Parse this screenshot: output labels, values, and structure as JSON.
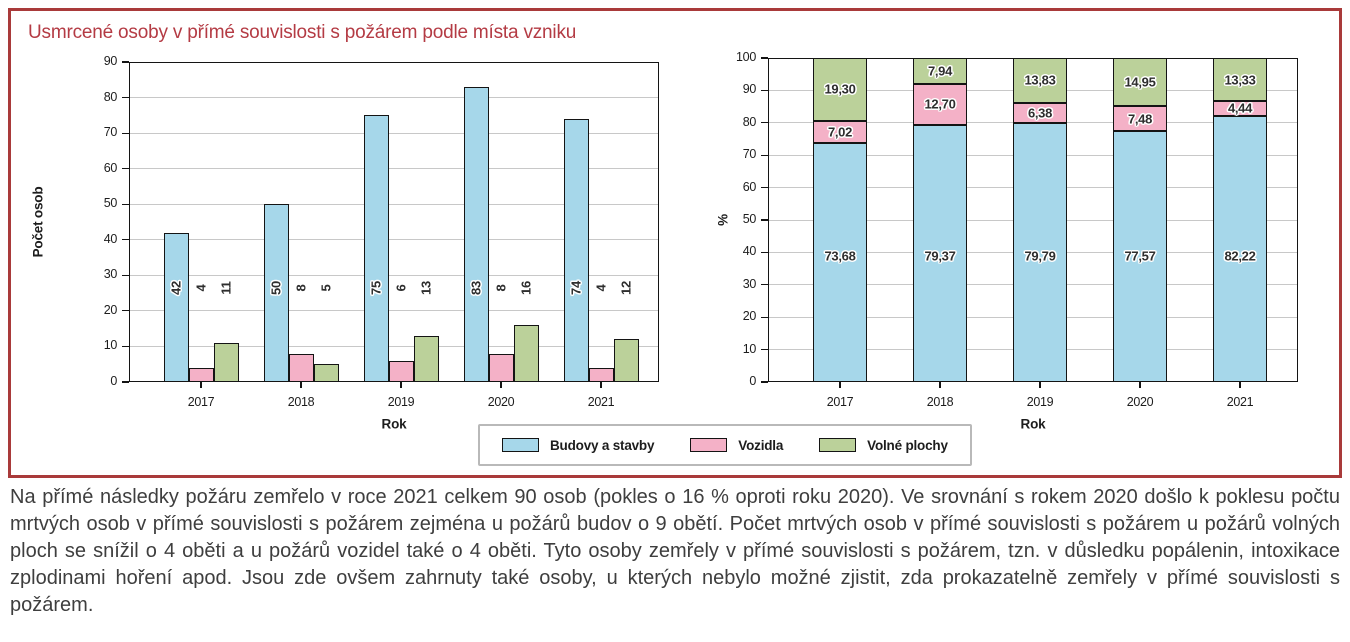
{
  "figure": {
    "title": "Usmrcené osoby v přímé souvislosti s požárem podle místa vzniku"
  },
  "colors": {
    "box_border": "#A93A3A",
    "title_red": "#B43B44",
    "buildings": "#A6D7EA",
    "vehicles": "#F4B1C7",
    "open_areas": "#BBD19A",
    "axis": "#141414",
    "grid": "#c8c8c8",
    "body_text": "#3E3E3E"
  },
  "legend": {
    "items": [
      {
        "key": "buildings",
        "label": "Budovy a stavby"
      },
      {
        "key": "vehicles",
        "label": "Vozidla"
      },
      {
        "key": "open_areas",
        "label": "Volné plochy"
      }
    ]
  },
  "chart_data": [
    {
      "type": "bar",
      "variant": "grouped",
      "title": "Usmrcené osoby v přímé souvislosti s požárem podle místa vzniku",
      "xlabel": "Rok",
      "ylabel": "Počet osob",
      "ylim": [
        0,
        90
      ],
      "ytick_step": 10,
      "grid": true,
      "legend_position": "bottom-center-shared",
      "categories": [
        "2017",
        "2018",
        "2019",
        "2020",
        "2021"
      ],
      "series": [
        {
          "name": "Budovy a stavby",
          "key": "buildings",
          "values": [
            42,
            50,
            75,
            83,
            74
          ],
          "labels": [
            "42",
            "50",
            "75",
            "83",
            "74"
          ]
        },
        {
          "name": "Vozidla",
          "key": "vehicles",
          "values": [
            4,
            8,
            6,
            8,
            4
          ],
          "labels": [
            "4",
            "8",
            "6",
            "8",
            "4"
          ]
        },
        {
          "name": "Volné plochy",
          "key": "open_areas",
          "values": [
            11,
            5,
            13,
            16,
            12
          ],
          "labels": [
            "11",
            "5",
            "13",
            "16",
            "12"
          ]
        }
      ]
    },
    {
      "type": "bar",
      "variant": "stacked-percent",
      "title": "",
      "xlabel": "Rok",
      "ylabel": "%",
      "ylim": [
        0,
        100
      ],
      "ytick_step": 10,
      "grid": true,
      "legend_position": "bottom-center-shared",
      "categories": [
        "2017",
        "2018",
        "2019",
        "2020",
        "2021"
      ],
      "series": [
        {
          "name": "Budovy a stavby",
          "key": "buildings",
          "values": [
            73.68,
            79.37,
            79.79,
            77.57,
            82.22
          ],
          "labels": [
            "73,68",
            "79,37",
            "79,79",
            "77,57",
            "82,22"
          ]
        },
        {
          "name": "Vozidla",
          "key": "vehicles",
          "values": [
            7.02,
            12.7,
            6.38,
            7.48,
            4.44
          ],
          "labels": [
            "7,02",
            "12,70",
            "6,38",
            "7,48",
            "4,44"
          ]
        },
        {
          "name": "Volné plochy",
          "key": "open_areas",
          "values": [
            19.3,
            7.94,
            13.83,
            14.95,
            13.33
          ],
          "labels": [
            "19,30",
            "7,94",
            "13,83",
            "14,95",
            "13,33"
          ]
        }
      ]
    }
  ],
  "paragraph": "Na přímé následky požáru zemřelo v roce 2021 celkem 90 osob (pokles o 16 % oproti roku 2020). Ve srovnání s rokem 2020 došlo k poklesu počtu mrtvých osob v přímé souvislosti s požárem zejména u požárů budov o 9 obětí. Počet mrtvých osob v přímé souvislosti s požárem u požárů volných ploch se snížil o 4 oběti a u požárů vozidel také o 4 oběti. Tyto osoby zemřely v přímé souvislosti s požárem, tzn. v důsledku popálenin, intoxikace zplodinami hoření apod. Jsou zde ovšem zahrnuty také osoby, u kterých nebylo možné zjistit, zda prokazatelně zemřely v přímé souvislosti s požárem."
}
